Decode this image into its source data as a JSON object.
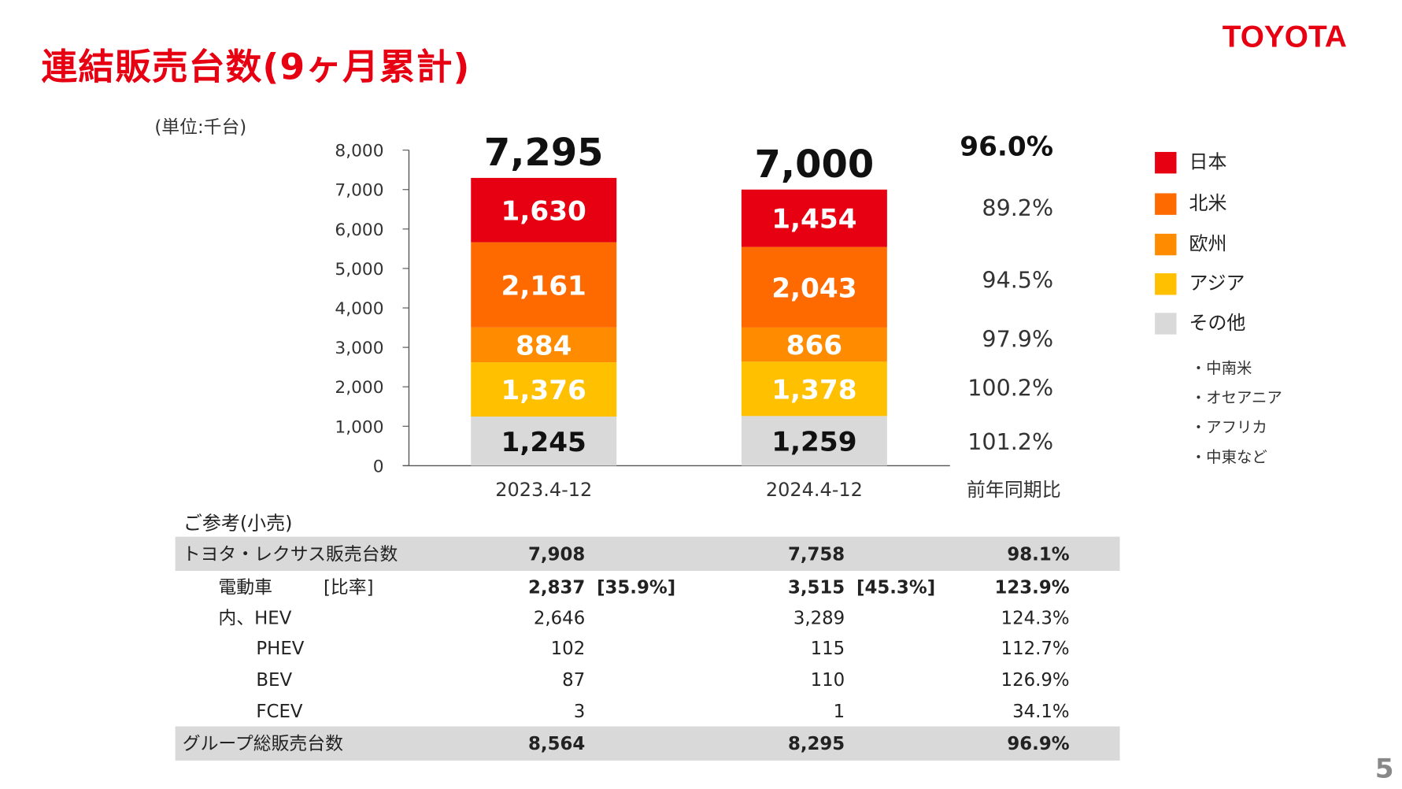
{
  "title": "連結販売台数(9ヶ月累計)",
  "logo": "TOYOTA",
  "page_number": "5",
  "unit_label": "(単位:千台)",
  "colors": {
    "日本": "#E60012",
    "北米": "#FF6A00",
    "欧州": "#FF8C00",
    "アジア": "#FFC000",
    "その他": "#D9D9D9"
  },
  "chart_data": {
    "type": "bar",
    "stacked": true,
    "categories": [
      "2023.4-12",
      "2024.4-12"
    ],
    "series": [
      {
        "name": "その他",
        "values": [
          1245,
          1259
        ],
        "labels": [
          "1,245",
          "1,259"
        ],
        "yoy": "101.2%"
      },
      {
        "name": "アジア",
        "values": [
          1376,
          1378
        ],
        "labels": [
          "1,376",
          "1,378"
        ],
        "yoy": "100.2%"
      },
      {
        "name": "欧州",
        "values": [
          884,
          866
        ],
        "labels": [
          "884",
          "866"
        ],
        "yoy": "97.9%"
      },
      {
        "name": "北米",
        "values": [
          2161,
          2043
        ],
        "labels": [
          "2,161",
          "2,043"
        ],
        "yoy": "94.5%"
      },
      {
        "name": "日本",
        "values": [
          1630,
          1454
        ],
        "labels": [
          "1,630",
          "1,454"
        ],
        "yoy": "89.2%"
      }
    ],
    "totals": [
      "7,295",
      "7,000"
    ],
    "total_yoy": "96.0%",
    "yoy_header": "前年同期比",
    "ylim": [
      0,
      8000
    ],
    "yticks": [
      "0",
      "1,000",
      "2,000",
      "3,000",
      "4,000",
      "5,000",
      "6,000",
      "7,000",
      "8,000"
    ],
    "legend_placement": "right",
    "legend": [
      "日本",
      "北米",
      "欧州",
      "アジア",
      "その他"
    ],
    "legend_notes": [
      "・中南米",
      "・オセアニア",
      "・アフリカ",
      "・中東など"
    ]
  },
  "reference": {
    "label": "ご参考(小売)",
    "rows": [
      {
        "name": "トヨタ・レクサス販売台数",
        "v1": "7,908",
        "v2": "7,758",
        "pct": "98.1%"
      },
      {
        "name": "電動車",
        "ratio_label": "[比率]",
        "v1": "2,837",
        "r1": "[35.9%]",
        "v2": "3,515",
        "r2": "[45.3%]",
        "pct": "123.9%"
      },
      {
        "name": "内、HEV",
        "v1": "2,646",
        "v2": "3,289",
        "pct": "124.3%"
      },
      {
        "name": "PHEV",
        "v1": "102",
        "v2": "115",
        "pct": "112.7%"
      },
      {
        "name": "BEV",
        "v1": "87",
        "v2": "110",
        "pct": "126.9%"
      },
      {
        "name": "FCEV",
        "v1": "3",
        "v2": "1",
        "pct": "34.1%"
      },
      {
        "name": "グループ総販売台数",
        "v1": "8,564",
        "v2": "8,295",
        "pct": "96.9%"
      }
    ]
  }
}
